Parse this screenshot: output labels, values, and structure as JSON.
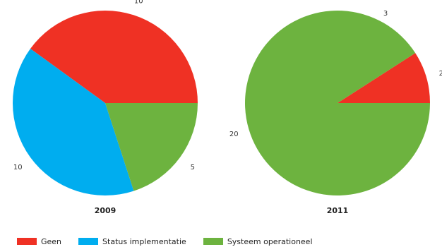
{
  "chart_data": [
    {
      "type": "pie",
      "title": "2009",
      "categories": [
        "Geen",
        "Status implementatie",
        "Systeem operationeel"
      ],
      "values": [
        10,
        10,
        5
      ],
      "start_angle_deg": 0,
      "direction": "counterclockwise_from_right"
    },
    {
      "type": "pie",
      "title": "2011",
      "categories": [
        "Geen",
        "Systeem operationeel"
      ],
      "values": [
        2,
        20
      ],
      "extra_labels": [
        "3"
      ],
      "start_angle_deg": 0,
      "direction": "counterclockwise_from_right"
    }
  ],
  "legend": {
    "items": [
      {
        "label": "Geen",
        "color": "#ef3124"
      },
      {
        "label": "Status implementatie",
        "color": "#00adef"
      },
      {
        "label": "Systeem operationeel",
        "color": "#6db33f"
      }
    ]
  }
}
